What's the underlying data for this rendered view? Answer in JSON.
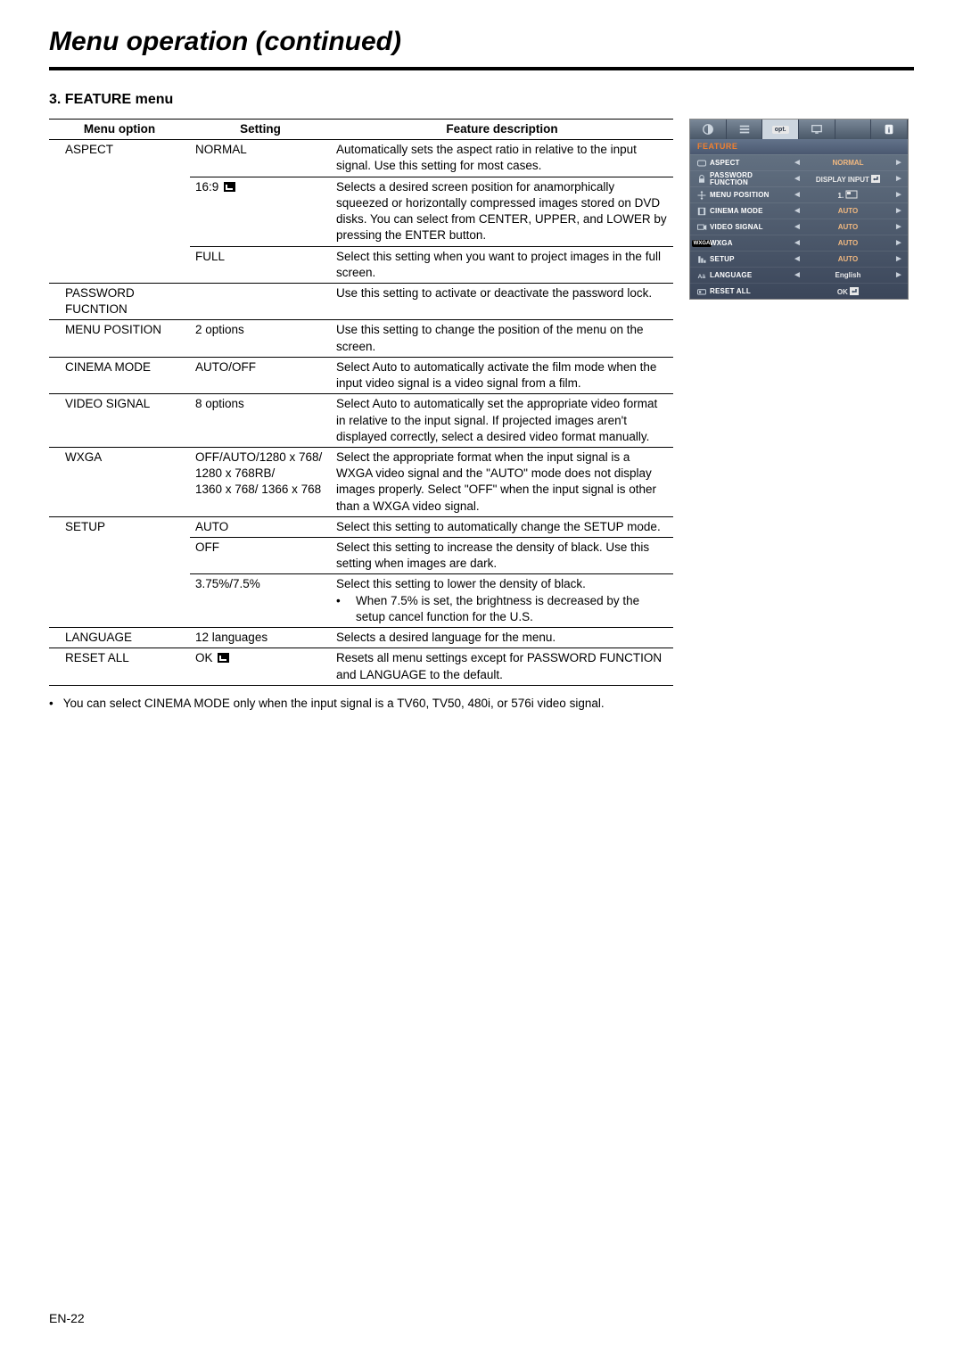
{
  "page_title": "Menu operation (continued)",
  "section_heading": "3. FEATURE menu",
  "page_number": "EN-22",
  "table": {
    "headers": {
      "option": "Menu option",
      "setting": "Setting",
      "desc": "Feature description"
    }
  },
  "rows": {
    "aspect_label": "ASPECT",
    "aspect_normal_setting": "NORMAL",
    "aspect_normal_desc": "Automatically sets the aspect ratio in relative to the input signal. Use this setting for most cases.",
    "aspect_169_setting": "16:9",
    "aspect_169_desc": "Selects a desired screen position for anamorphically squeezed or horizontally compressed images stored on DVD disks. You can select from CENTER, UPPER, and LOWER by pressing the ENTER button.",
    "aspect_full_setting": "FULL",
    "aspect_full_desc": "Select this setting when you want to project images in the full screen.",
    "password_label": "PASSWORD FUCNTION",
    "password_desc": "Use this setting to activate or deactivate the password lock.",
    "menupos_label": "MENU POSITION",
    "menupos_setting": "2 options",
    "menupos_desc": "Use this setting to change the position of the menu on the screen.",
    "cinema_label": "CINEMA MODE",
    "cinema_setting": "AUTO/OFF",
    "cinema_desc": "Select Auto to automatically activate the film mode when the input video signal is a video signal from a film.",
    "videosig_label": "VIDEO SIGNAL",
    "videosig_setting": "8 options",
    "videosig_desc": "Select Auto to automatically set the appropriate video format in relative to the input signal. If projected images aren't displayed correctly, select a desired video format manually.",
    "wxga_label": "WXGA",
    "wxga_setting": "OFF/AUTO/1280 x 768/ 1280 x 768RB/\n1360 x 768/ 1366 x 768",
    "wxga_desc": "Select the appropriate format when the input signal is a WXGA video signal and the \"AUTO\" mode does not display images properly. Select \"OFF\" when the input signal is other than a WXGA video signal.",
    "setup_label": "SETUP",
    "setup_auto_setting": "AUTO",
    "setup_auto_desc": "Select this setting to automatically change the SETUP mode.",
    "setup_off_setting": "OFF",
    "setup_off_desc": "Select this setting to increase the density of black. Use this setting when images are dark.",
    "setup_375_setting": "3.75%/7.5%",
    "setup_375_desc1": "Select this setting to lower the density of black.",
    "setup_375_desc2": "When 7.5% is set, the brightness is decreased by the setup cancel function for the U.S.",
    "language_label": "LANGUAGE",
    "language_setting": "12 languages",
    "language_desc": "Selects a desired language for the menu.",
    "resetall_label": "RESET ALL",
    "resetall_setting": "OK",
    "resetall_desc": "Resets all menu settings except for PASSWORD FUNCTION and LANGUAGE to the default."
  },
  "footnote_bullet": "•",
  "footnote": "You can select CINEMA MODE only when the input signal is a TV60, TV50, 480i, or 576i video signal.",
  "osd": {
    "title": "FEATURE",
    "tab_opt": "opt.",
    "items": [
      {
        "label": "ASPECT",
        "value": "NORMAL",
        "val_class": "",
        "arrows": true
      },
      {
        "label": "PASSWORD FUNCTION",
        "value": "DISPLAY INPUT",
        "val_class": "white",
        "arrows": true,
        "enter": true
      },
      {
        "label": "MENU POSITION",
        "value": "1.",
        "val_class": "white",
        "arrows": true,
        "rect": true
      },
      {
        "label": "CINEMA MODE",
        "value": "AUTO",
        "val_class": "",
        "arrows": true
      },
      {
        "label": "VIDEO SIGNAL",
        "value": "AUTO",
        "val_class": "",
        "arrows": true
      },
      {
        "label": "WXGA",
        "value": "AUTO",
        "val_class": "",
        "arrows": true,
        "wxga": true
      },
      {
        "label": "SETUP",
        "value": "AUTO",
        "val_class": "",
        "arrows": true
      },
      {
        "label": "LANGUAGE",
        "value": "English",
        "val_class": "white",
        "arrows": true
      },
      {
        "label": "RESET ALL",
        "value": "OK",
        "val_class": "white",
        "arrows": false,
        "enter": true
      }
    ]
  }
}
